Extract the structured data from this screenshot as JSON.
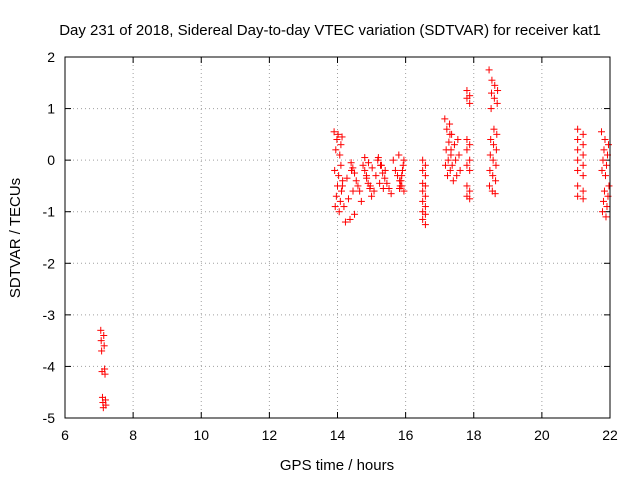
{
  "chart_data": {
    "type": "scatter",
    "title": "Day 231 of 2018, Sidereal Day-to-day VTEC variation (SDTVAR) for receiver kat1",
    "xlabel": "GPS time / hours",
    "ylabel": "SDTVAR / TECUs",
    "xlim": [
      6,
      22
    ],
    "ylim": [
      -5,
      2
    ],
    "xticks": [
      6,
      8,
      10,
      12,
      14,
      16,
      18,
      20,
      22
    ],
    "yticks": [
      -5,
      -4,
      -3,
      -2,
      -1,
      0,
      1,
      2
    ],
    "grid": true,
    "marker": "+",
    "color": "#ff0000",
    "segments": [
      {
        "x0": 7.05,
        "x1": 7.2,
        "ys": [
          -3.3,
          -3.4,
          -3.5,
          -3.6,
          -3.7,
          -4.05,
          -4.1,
          -4.15,
          -4.6,
          -4.65,
          -4.7,
          -4.75,
          -4.8
        ]
      },
      {
        "x0": 13.9,
        "x1": 14.15,
        "ys": [
          0.55,
          0.5,
          0.45,
          0.4,
          0.3,
          0.2,
          0.1,
          -0.2,
          -0.3,
          -0.4,
          -0.5,
          -0.6,
          -0.7,
          -0.8,
          -0.9,
          -1.0
        ]
      },
      {
        "x0": 14.1,
        "x1": 14.5,
        "ys": [
          -0.1,
          -0.2,
          -0.35,
          -0.5,
          -0.6,
          -0.75,
          -0.9,
          -1.05,
          -1.15,
          -1.2
        ]
      },
      {
        "x0": 14.4,
        "x1": 15.0,
        "ys": [
          -0.05,
          -0.1,
          -0.15,
          -0.2,
          -0.25,
          -0.3,
          -0.4,
          -0.45,
          -0.5,
          -0.55,
          -0.6,
          -0.7,
          -0.8
        ]
      },
      {
        "x0": 14.8,
        "x1": 15.4,
        "ys": [
          0.05,
          0.0,
          -0.05,
          -0.1,
          -0.15,
          -0.2,
          -0.3,
          -0.35,
          -0.45,
          -0.5,
          -0.55,
          -0.6
        ]
      },
      {
        "x0": 15.2,
        "x1": 15.95,
        "ys": [
          0.05,
          0.0,
          -0.1,
          -0.2,
          -0.25,
          -0.3,
          -0.35,
          -0.4,
          -0.45,
          -0.5,
          -0.55,
          -0.6,
          -0.65
        ]
      },
      {
        "x0": 15.8,
        "x1": 15.95,
        "ys": [
          0.1,
          0.0,
          -0.1,
          -0.2,
          -0.3,
          -0.4,
          -0.5,
          -0.55
        ]
      },
      {
        "x0": 16.5,
        "x1": 16.65,
        "ys": [
          0.0,
          -0.1,
          -0.2,
          -0.3,
          -0.45,
          -0.5,
          -0.6,
          -0.7,
          -0.8,
          -0.9,
          -1.0,
          -1.05,
          -1.15,
          -1.25
        ]
      },
      {
        "x0": 17.15,
        "x1": 17.35,
        "ys": [
          0.8,
          0.7,
          0.6,
          0.5,
          0.35,
          0.2,
          0.1,
          0.0,
          -0.1,
          -0.2,
          -0.3
        ]
      },
      {
        "x0": 17.3,
        "x1": 17.6,
        "ys": [
          0.5,
          0.4,
          0.3,
          0.2,
          0.1,
          0.0,
          -0.1,
          -0.2,
          -0.3,
          -0.4
        ]
      },
      {
        "x0": 17.8,
        "x1": 17.95,
        "ys": [
          1.35,
          1.25,
          1.2,
          1.1,
          0.4,
          0.3,
          0.2,
          0.0,
          -0.1,
          -0.2,
          -0.5,
          -0.6,
          -0.7,
          -0.75
        ]
      },
      {
        "x0": 18.45,
        "x1": 18.7,
        "ys": [
          1.75,
          1.55,
          1.45,
          1.35,
          1.3,
          1.2,
          1.1,
          1.0,
          0.6,
          0.5,
          0.4,
          0.3,
          0.2,
          0.1,
          0.0,
          -0.1,
          -0.2,
          -0.3,
          -0.4,
          -0.5,
          -0.6,
          -0.65
        ]
      },
      {
        "x0": 21.05,
        "x1": 21.35,
        "ys": [
          0.6,
          0.5,
          0.4,
          0.3,
          0.2,
          0.1,
          0.0,
          -0.1,
          -0.2,
          -0.3,
          -0.5,
          -0.6,
          -0.7,
          -0.75
        ]
      },
      {
        "x0": 21.75,
        "x1": 21.97,
        "ys": [
          0.55,
          0.4,
          0.3,
          0.2,
          0.1,
          0.0,
          -0.1,
          -0.2,
          -0.3,
          -0.5,
          -0.6,
          -0.7,
          -0.8,
          -0.9,
          -1.0,
          -1.1
        ]
      }
    ]
  }
}
